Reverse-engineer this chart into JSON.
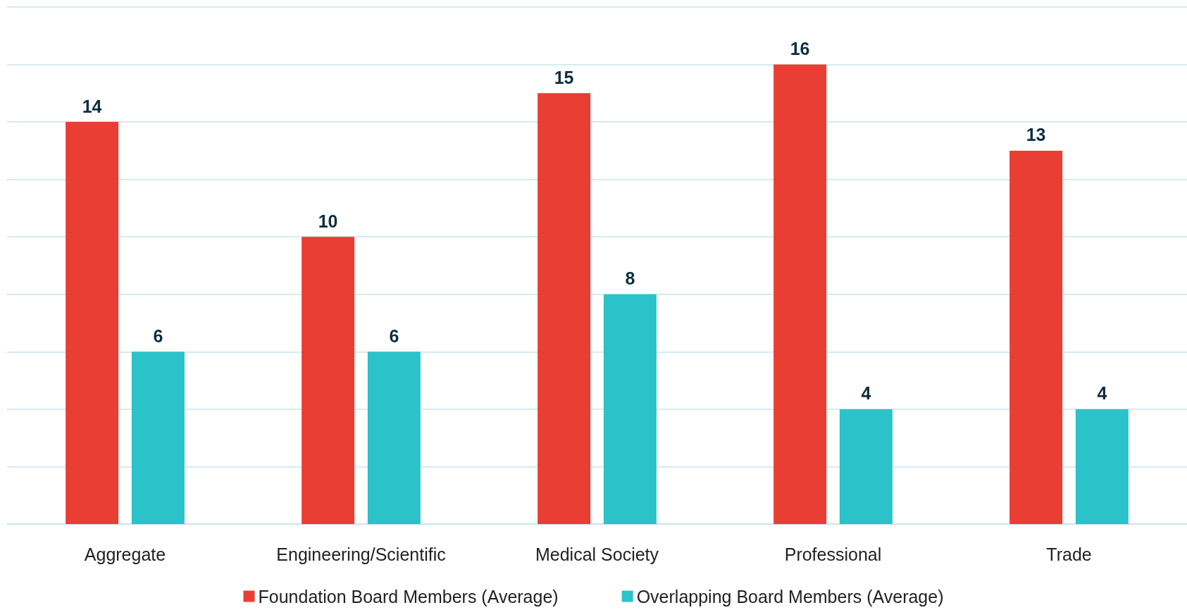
{
  "chart_data": {
    "type": "bar",
    "categories": [
      "Aggregate",
      "Engineering/Scientific",
      "Medical Society",
      "Professional",
      "Trade"
    ],
    "series": [
      {
        "name": "Foundation Board Members (Average)",
        "color": "#e93e33",
        "values": [
          14,
          10,
          15,
          16,
          13
        ]
      },
      {
        "name": "Overlapping Board Members (Average)",
        "color": "#2bc3c9",
        "values": [
          6,
          6,
          8,
          4,
          4
        ]
      }
    ],
    "ylim": [
      0,
      18
    ],
    "yticks": [
      {
        "value": 0,
        "label": null
      },
      {
        "value": 2,
        "label": null
      },
      {
        "value": 4,
        "label": null
      },
      {
        "value": 6,
        "label": null
      },
      {
        "value": 8,
        "label": null
      },
      {
        "value": 10,
        "label": null
      },
      {
        "value": 12,
        "label": null
      },
      {
        "value": 14,
        "label": null
      },
      {
        "value": 16,
        "label": null
      },
      {
        "value": 18,
        "label": null
      }
    ],
    "tick_labels": "x",
    "grid": "y",
    "data_labels": true,
    "legend": "bottom"
  }
}
